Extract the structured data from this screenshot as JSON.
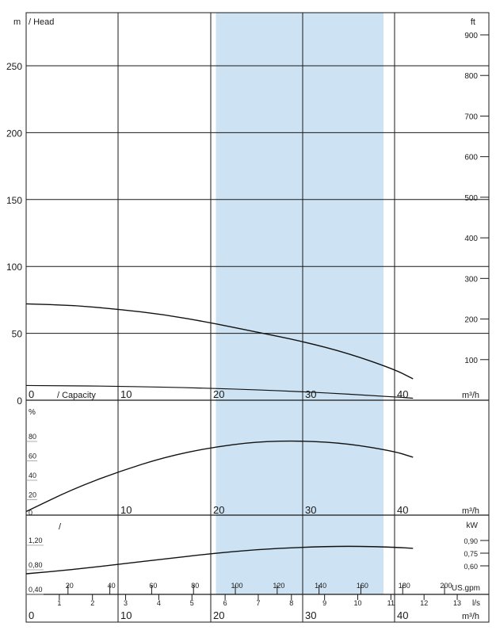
{
  "chart_data": [
    {
      "type": "line",
      "panel": "head",
      "ylabel_left": "m",
      "title": "/ Head",
      "ylabel_right": "ft",
      "ylim": [
        0,
        285
      ],
      "yticks_left": [
        0,
        50,
        100,
        150,
        200,
        250
      ],
      "yticks_right": [
        100,
        200,
        300,
        400,
        500,
        600,
        700,
        800,
        900
      ],
      "series": [
        {
          "x": [
            0,
            5,
            10,
            15,
            20,
            25,
            30,
            35,
            40,
            42
          ],
          "y": [
            72,
            71,
            68,
            64,
            58,
            51,
            44,
            35,
            23,
            16
          ]
        },
        {
          "x": [
            0,
            10,
            20,
            30,
            40,
            42
          ],
          "y": [
            11,
            10.5,
            9,
            6.5,
            2.5,
            1.5
          ]
        }
      ],
      "highlight_range": [
        20.6,
        38.8
      ]
    },
    {
      "type": "line",
      "panel": "efficiency",
      "ylabel": "%",
      "title": "/ Capacity",
      "ylim": [
        0,
        100
      ],
      "yticks": [
        20,
        40,
        60,
        80
      ],
      "xticks": [
        0,
        10,
        20,
        30,
        40
      ],
      "xunit": "m³/h",
      "series": [
        {
          "x": [
            0,
            5,
            10,
            15,
            20,
            25,
            30,
            35,
            40,
            42
          ],
          "y": [
            2,
            25,
            43,
            58,
            68,
            74,
            75,
            72,
            64,
            58
          ]
        }
      ]
    },
    {
      "type": "line",
      "panel": "power",
      "title": "/",
      "ylabel": "kW",
      "ylim": [
        0.3,
        1.35
      ],
      "yticks_left": [
        "0,40",
        "0,80",
        "1,20"
      ],
      "yticks_right": [
        "0,60",
        "0,75",
        "0,90"
      ],
      "series": [
        {
          "x": [
            0,
            5,
            10,
            15,
            20,
            25,
            30,
            35,
            40,
            42
          ],
          "y": [
            0.55,
            0.62,
            0.71,
            0.8,
            0.89,
            0.96,
            1.0,
            1.02,
            1.0,
            0.98
          ]
        }
      ]
    }
  ],
  "bottom_axes": {
    "usgpm_label": "US.gpm",
    "usgpm_ticks": [
      20,
      40,
      60,
      80,
      100,
      120,
      140,
      160,
      180,
      200
    ],
    "ls_label": "l/s",
    "ls_ticks": [
      1,
      2,
      3,
      4,
      5,
      6,
      7,
      8,
      9,
      10,
      11,
      12,
      13
    ],
    "m3h_label": "m³/h",
    "m3h_ticks": [
      0,
      10,
      20,
      30,
      40
    ]
  },
  "colors": {
    "highlight": "#cde2f2",
    "line": "#111111",
    "grid": "#1a1a1a"
  }
}
